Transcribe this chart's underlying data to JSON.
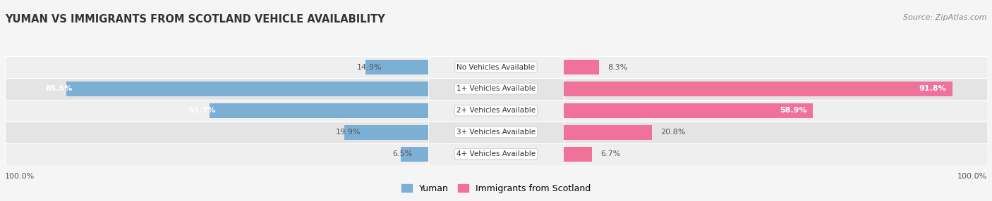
{
  "title": "YUMAN VS IMMIGRANTS FROM SCOTLAND VEHICLE AVAILABILITY",
  "source": "Source: ZipAtlas.com",
  "categories": [
    "No Vehicles Available",
    "1+ Vehicles Available",
    "2+ Vehicles Available",
    "3+ Vehicles Available",
    "4+ Vehicles Available"
  ],
  "yuman_values": [
    14.9,
    85.5,
    51.7,
    19.9,
    6.5
  ],
  "scotland_values": [
    8.3,
    91.8,
    58.9,
    20.8,
    6.7
  ],
  "yuman_color": "#7bafd4",
  "scotland_color": "#f0719a",
  "yuman_label": "Yuman",
  "scotland_label": "Immigrants from Scotland",
  "left_label": "100.0%",
  "right_label": "100.0%",
  "bar_height": 0.68,
  "title_fontsize": 10.5,
  "source_fontsize": 8,
  "bar_label_fontsize": 8,
  "category_fontsize": 7.5,
  "legend_fontsize": 9,
  "row_colors": [
    "#efefef",
    "#e4e4e4",
    "#efefef",
    "#e4e4e4",
    "#efefef"
  ],
  "max_val": 100
}
